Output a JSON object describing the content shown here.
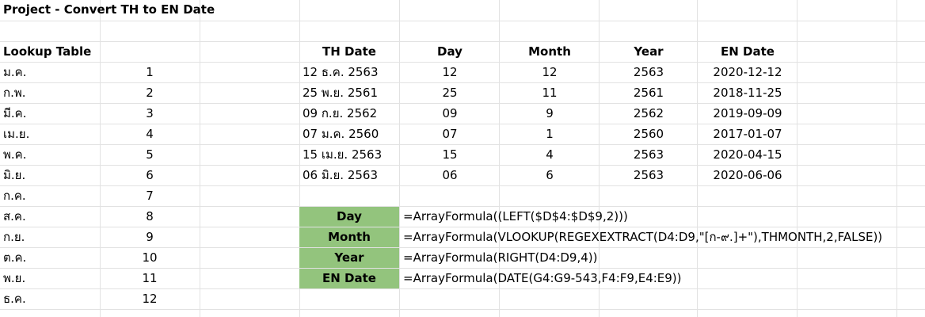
{
  "title": "Project - Convert TH to EN Date",
  "lookup": {
    "header": "Lookup Table",
    "rows": [
      {
        "abbr": "ม.ค.",
        "num": "1"
      },
      {
        "abbr": "ก.พ.",
        "num": "2"
      },
      {
        "abbr": "มี.ค.",
        "num": "3"
      },
      {
        "abbr": "เม.ย.",
        "num": "4"
      },
      {
        "abbr": "พ.ค.",
        "num": "5"
      },
      {
        "abbr": "มิ.ย.",
        "num": "6"
      },
      {
        "abbr": "ก.ค.",
        "num": "7"
      },
      {
        "abbr": "ส.ค.",
        "num": "8"
      },
      {
        "abbr": "ก.ย.",
        "num": "9"
      },
      {
        "abbr": "ต.ค.",
        "num": "10"
      },
      {
        "abbr": "พ.ย.",
        "num": "11"
      },
      {
        "abbr": "ธ.ค.",
        "num": "12"
      }
    ]
  },
  "table": {
    "headers": {
      "th_date": "TH Date",
      "day": "Day",
      "month": "Month",
      "year": "Year",
      "en_date": "EN Date"
    },
    "rows": [
      {
        "th_date": "12 ธ.ค. 2563",
        "day": "12",
        "month": "12",
        "year": "2563",
        "en_date": "2020-12-12"
      },
      {
        "th_date": "25 พ.ย. 2561",
        "day": "25",
        "month": "11",
        "year": "2561",
        "en_date": "2018-11-25"
      },
      {
        "th_date": "09 ก.ย. 2562",
        "day": "09",
        "month": "9",
        "year": "2562",
        "en_date": "2019-09-09"
      },
      {
        "th_date": "07 ม.ค. 2560",
        "day": "07",
        "month": "1",
        "year": "2560",
        "en_date": "2017-01-07"
      },
      {
        "th_date": "15 เม.ย. 2563",
        "day": "15",
        "month": "4",
        "year": "2563",
        "en_date": "2020-04-15"
      },
      {
        "th_date": "06 มิ.ย. 2563",
        "day": "06",
        "month": "6",
        "year": "2563",
        "en_date": "2020-06-06"
      }
    ]
  },
  "formulas": [
    {
      "label": "Day",
      "formula": "=ArrayFormula((LEFT($D$4:$D$9,2)))"
    },
    {
      "label": "Month",
      "formula": "=ArrayFormula(VLOOKUP(REGEXEXTRACT(D4:D9,\"[ก-๙.]+\"),THMONTH,2,FALSE))"
    },
    {
      "label": "Year",
      "formula": "=ArrayFormula(RIGHT(D4:D9,4))"
    },
    {
      "label": "EN Date",
      "formula": "=ArrayFormula(DATE(G4:G9-543,F4:F9,E4:E9))"
    }
  ]
}
